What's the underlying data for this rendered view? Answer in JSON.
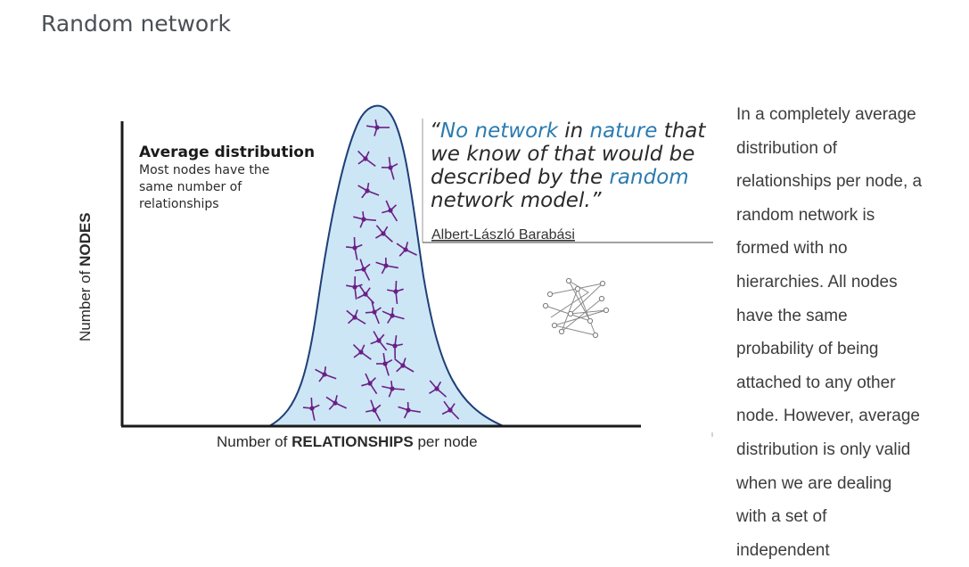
{
  "page": {
    "title": "Random network"
  },
  "diagram": {
    "y_axis_label_prefix": "Number of ",
    "y_axis_label_bold": "NODES",
    "x_axis_label_prefix": "Number of ",
    "x_axis_label_bold": "RELATIONSHIPS",
    "x_axis_label_suffix": " per node",
    "box_title": "Average distribution",
    "box_lines": [
      "Most nodes have the",
      "same number of",
      "relationships"
    ],
    "quote": {
      "open_mark": "“",
      "l1_a": "No network",
      "l1_b": " in ",
      "l1_c": "nature",
      "l1_d": " that",
      "l2": "we know of that would be",
      "l3_a": "described by the ",
      "l3_b": "random",
      "l4": "network model.”",
      "author": "Albert-László Barabási"
    },
    "colors": {
      "bell_fill": "#cde6f5",
      "bell_stroke": "#1e3f78",
      "node_color": "#6a1f86",
      "quote_highlight": "#2b7bb0",
      "quote_text": "#2a2a2a",
      "axis": "#1a1a1a"
    }
  },
  "side_text": {
    "lines": [
      "In a completely average",
      "distribution of",
      "relationships per node, a",
      "random network is",
      "formed with no",
      "hierarchies. All nodes",
      "have the same",
      "probability of being",
      "attached to any other",
      "node. However, average",
      "distribution is only valid",
      "when we are dealing",
      "with a set of",
      "independent"
    ]
  }
}
